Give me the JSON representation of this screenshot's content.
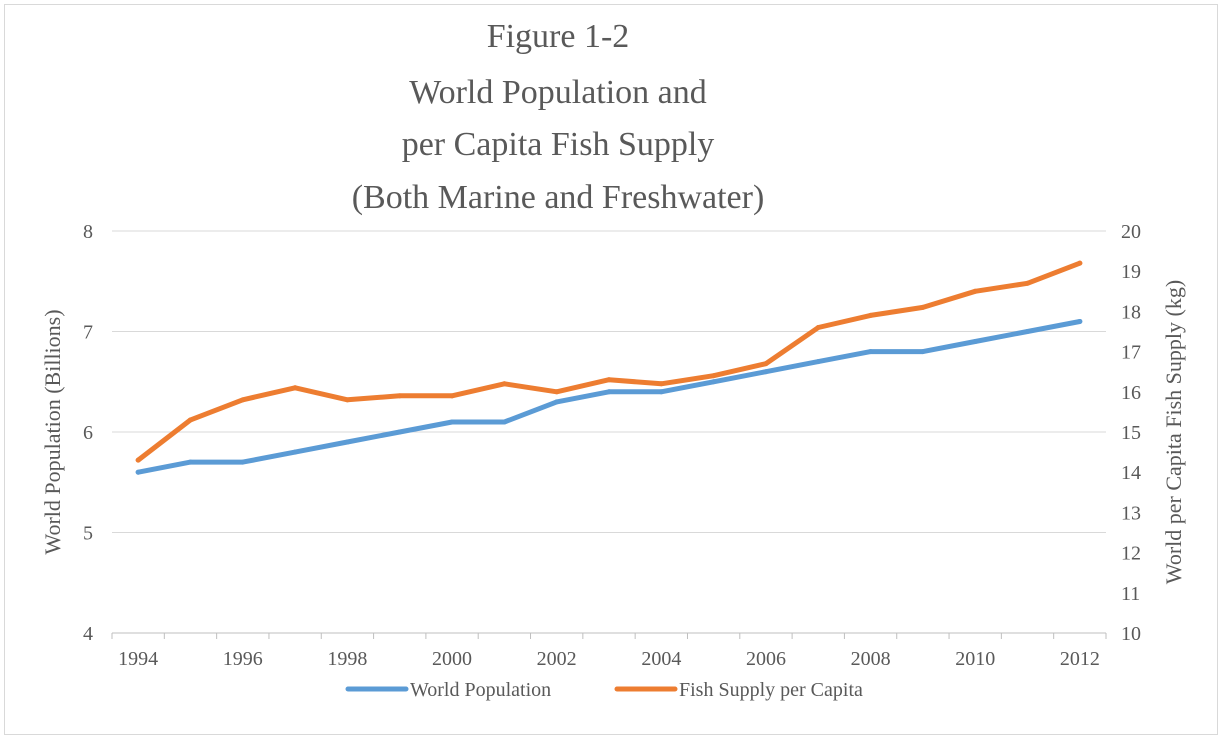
{
  "chart_data": {
    "type": "line",
    "title": [
      "Figure 1-2",
      "World Population and",
      "per Capita Fish Supply",
      "(Both Marine and Freshwater)"
    ],
    "x": [
      1994,
      1995,
      1996,
      1997,
      1998,
      1999,
      2000,
      2001,
      2002,
      2003,
      2004,
      2005,
      2006,
      2007,
      2008,
      2009,
      2010,
      2011,
      2012
    ],
    "x_tick_labels": [
      "1994",
      "1996",
      "1998",
      "2000",
      "2002",
      "2004",
      "2006",
      "2008",
      "2010",
      "2012"
    ],
    "y_left": {
      "label": "World Population (Billions)",
      "range": [
        4,
        8
      ],
      "ticks": [
        "4",
        "5",
        "6",
        "7",
        "8"
      ]
    },
    "y_right": {
      "label": "World per Capita Fish Supply (kg)",
      "range": [
        10,
        20
      ],
      "ticks": [
        "10",
        "11",
        "12",
        "13",
        "14",
        "15",
        "16",
        "17",
        "18",
        "19",
        "20"
      ]
    },
    "series": [
      {
        "name": "World Population",
        "axis": "left",
        "color": "#5b9bd5",
        "values": [
          5.6,
          5.7,
          5.7,
          5.8,
          5.9,
          6.0,
          6.1,
          6.1,
          6.3,
          6.4,
          6.4,
          6.5,
          6.6,
          6.7,
          6.8,
          6.8,
          6.9,
          7.0,
          7.1
        ]
      },
      {
        "name": "Fish Supply per Capita",
        "axis": "right",
        "color": "#ed7d31",
        "values": [
          14.3,
          15.3,
          15.8,
          16.1,
          15.8,
          15.9,
          15.9,
          16.2,
          16.0,
          16.3,
          16.2,
          16.4,
          16.7,
          17.6,
          17.9,
          18.1,
          18.5,
          18.7,
          19.2
        ]
      }
    ],
    "grid": true,
    "legend_position": "bottom"
  }
}
